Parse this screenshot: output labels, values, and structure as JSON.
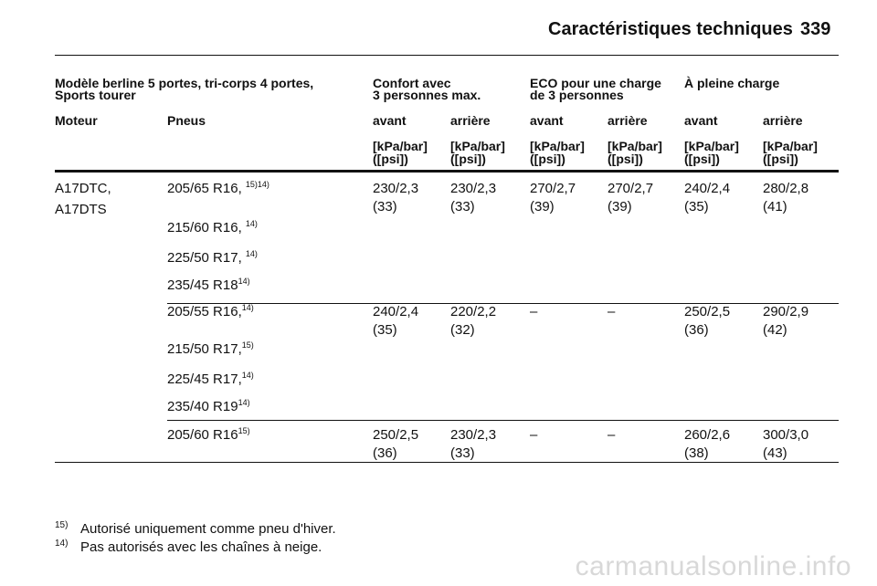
{
  "header": {
    "title": "Caractéristiques techniques",
    "page": "339"
  },
  "table": {
    "groups": [
      {
        "lines": [
          "Modèle berline 5 portes, tri-corps 4 portes,",
          "Sports tourer"
        ]
      },
      {
        "lines": [
          "Confort avec",
          "3 personnes max."
        ]
      },
      {
        "lines": [
          "ECO pour une charge",
          "de 3 personnes"
        ]
      },
      {
        "lines": [
          "À pleine charge"
        ]
      }
    ],
    "columns": [
      "Moteur",
      "Pneus",
      "avant",
      "arrière",
      "avant",
      "arrière",
      "avant",
      "arrière"
    ],
    "units": [
      {
        "lines": [
          "[kPa/bar]",
          "([psi])"
        ]
      },
      {
        "lines": [
          "[kPa/bar]",
          "([psi])"
        ]
      },
      {
        "lines": [
          "[kPa/bar]",
          "([psi])"
        ]
      },
      {
        "lines": [
          "[kPa/bar]",
          "([psi])"
        ]
      },
      {
        "lines": [
          "[kPa/bar]",
          "([psi])"
        ]
      },
      {
        "lines": [
          "[kPa/bar]",
          "([psi])"
        ]
      }
    ],
    "rows": [
      {
        "engines": [
          "A17DTC,",
          "A17DTS"
        ],
        "tires": [
          {
            "size": "205/65 R16, ",
            "notes": "15)14)"
          },
          {
            "size": "215/60 R16, ",
            "notes": "14)"
          },
          {
            "size": "225/50 R17, ",
            "notes": "14)"
          },
          {
            "size": "235/45 R18",
            "notes": "14)"
          }
        ],
        "values": [
          [
            "230/2,3",
            "(33)"
          ],
          [
            "230/2,3",
            "(33)"
          ],
          [
            "270/2,7",
            "(39)"
          ],
          [
            "270/2,7",
            "(39)"
          ],
          [
            "240/2,4",
            "(35)"
          ],
          [
            "280/2,8",
            "(41)"
          ]
        ]
      },
      {
        "engines": [],
        "tires": [
          {
            "size": "205/55 R16,",
            "notes": "14)"
          },
          {
            "size": "215/50 R17,",
            "notes": "15)"
          },
          {
            "size": "225/45 R17,",
            "notes": "14)"
          },
          {
            "size": "235/40 R19",
            "notes": "14)"
          }
        ],
        "values": [
          [
            "240/2,4",
            "(35)"
          ],
          [
            "220/2,2",
            "(32)"
          ],
          [
            "–"
          ],
          [
            "–"
          ],
          [
            "250/2,5",
            "(36)"
          ],
          [
            "290/2,9",
            "(42)"
          ]
        ]
      },
      {
        "engines": [],
        "tires": [
          {
            "size": "205/60 R16",
            "notes": "15)"
          }
        ],
        "values": [
          [
            "250/2,5",
            "(36)"
          ],
          [
            "230/2,3",
            "(33)"
          ],
          [
            "–"
          ],
          [
            "–"
          ],
          [
            "260/2,6",
            "(38)"
          ],
          [
            "300/3,0",
            "(43)"
          ]
        ]
      }
    ]
  },
  "footnotes": [
    {
      "mark": "15)",
      "text": "Autorisé uniquement comme pneu d'hiver."
    },
    {
      "mark": "14)",
      "text": "Pas autorisés avec les chaînes à neige."
    }
  ],
  "watermark": "carmanualsonline.info"
}
